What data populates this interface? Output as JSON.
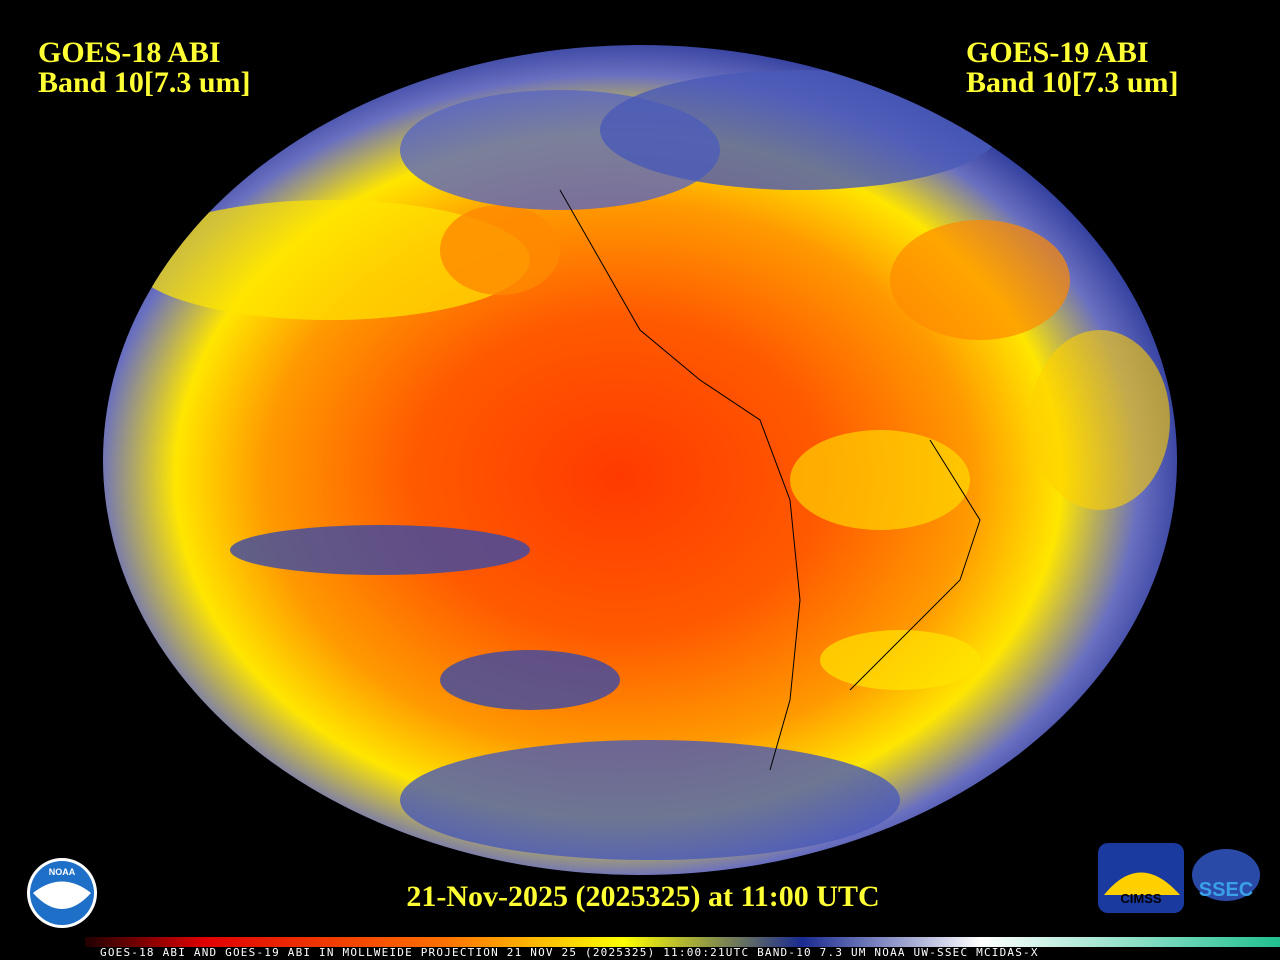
{
  "left_label": {
    "line1": "GOES-18 ABI",
    "line2": "Band 10[7.3 um]"
  },
  "right_label": {
    "line1": "GOES-19 ABI",
    "line2": "Band 10[7.3 um]"
  },
  "timestamp": "21-Nov-2025 (2025325) at 11:00 UTC",
  "footer": "GOES-18 ABI AND GOES-19 ABI IN MOLLWEIDE PROJECTION 21 NOV 25 (2025325) 11:00:21UTC BAND-10 7.3 UM NOAA UW-SSEC MCIDAS-X",
  "logos": {
    "noaa": "NOAA",
    "cimss": "CIMSS",
    "ssec": "SSEC"
  }
}
